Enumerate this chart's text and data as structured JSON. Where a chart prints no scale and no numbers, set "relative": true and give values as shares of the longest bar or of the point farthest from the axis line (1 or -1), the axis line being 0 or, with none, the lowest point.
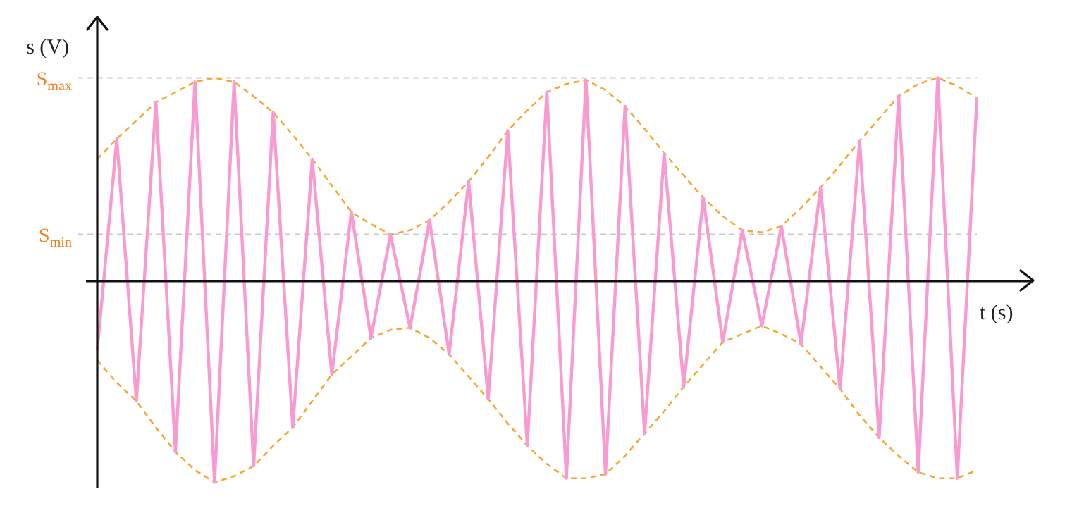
{
  "chart_data": {
    "type": "line",
    "xlabel": "t (s)",
    "ylabel": "s (V)",
    "relative": true,
    "marker": "none",
    "legend": false,
    "categories": [
      null,
      null,
      null,
      null,
      null,
      null,
      null,
      null,
      null,
      null,
      null,
      null,
      null,
      null,
      null,
      null,
      null,
      null,
      null,
      null,
      null,
      null,
      null,
      null,
      null,
      null,
      null,
      null,
      null,
      null,
      null,
      null,
      null,
      null,
      null,
      null,
      null,
      null,
      null,
      null,
      null,
      null,
      null,
      null,
      null,
      null
    ],
    "series": [
      {
        "color": "#f99bd0",
        "line_style": "solid",
        "values": [
          -0.34,
          0.7,
          -0.59,
          0.88,
          -0.84,
          0.98,
          -0.99,
          0.98,
          -0.91,
          0.83,
          -0.72,
          0.6,
          -0.46,
          0.34,
          -0.28,
          0.23,
          -0.23,
          0.3,
          -0.36,
          0.49,
          -0.58,
          0.74,
          -0.81,
          0.93,
          -0.97,
          0.99,
          -0.95,
          0.86,
          -0.75,
          0.63,
          -0.52,
          0.41,
          -0.3,
          0.25,
          -0.22,
          0.27,
          -0.31,
          0.46,
          -0.53,
          0.69,
          -0.77,
          0.91,
          -0.94,
          1.0,
          -0.97,
          0.9
        ]
      },
      {
        "color": "#f7a833",
        "line_style": "dashed",
        "values": [
          0.6,
          0.7,
          0.79,
          0.88,
          0.93,
          0.98,
          1.0,
          0.98,
          0.91,
          0.83,
          0.72,
          0.6,
          0.47,
          0.34,
          0.28,
          0.23,
          0.25,
          0.3,
          0.39,
          0.49,
          0.61,
          0.74,
          0.84,
          0.93,
          0.97,
          0.99,
          0.94,
          0.86,
          0.75,
          0.63,
          0.52,
          0.41,
          0.32,
          0.25,
          0.24,
          0.27,
          0.36,
          0.46,
          0.57,
          0.69,
          0.8,
          0.91,
          0.97,
          1.0,
          0.96,
          0.9
        ]
      },
      {
        "color": "#f7a833",
        "line_style": "dashed",
        "values": [
          -0.39,
          -0.5,
          -0.59,
          -0.72,
          -0.84,
          -0.93,
          -0.99,
          -0.96,
          -0.91,
          -0.81,
          -0.72,
          -0.59,
          -0.46,
          -0.37,
          -0.28,
          -0.24,
          -0.23,
          -0.28,
          -0.36,
          -0.47,
          -0.58,
          -0.7,
          -0.81,
          -0.9,
          -0.97,
          -0.97,
          -0.95,
          -0.86,
          -0.75,
          -0.64,
          -0.52,
          -0.41,
          -0.3,
          -0.26,
          -0.22,
          -0.26,
          -0.31,
          -0.42,
          -0.53,
          -0.66,
          -0.77,
          -0.86,
          -0.94,
          -0.97,
          -0.97,
          -0.93
        ]
      }
    ],
    "ref_lines": [
      {
        "axis": "y",
        "value": 1.0,
        "label": "S$_{max}$",
        "color": "#c8c8c8",
        "line_style": "dashed"
      },
      {
        "axis": "y",
        "value": 0.23,
        "label": "S$_{min}$",
        "color": "#c8c8c8",
        "line_style": "dashed"
      }
    ]
  }
}
